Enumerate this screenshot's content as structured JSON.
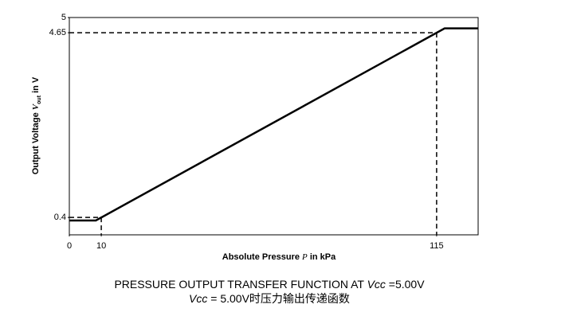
{
  "chart_data": {
    "type": "line",
    "ylabel": [
      "Output Voltage ",
      "V",
      "out",
      " in V"
    ],
    "xlabel": [
      "Absolute Pressure ",
      "P",
      " in kPa"
    ],
    "caption": [
      [
        "PRESSURE OUTPUT TRANSFER FUNCTION AT ",
        "Vcc",
        " =5.00V"
      ],
      [
        "Vcc",
        " = 5.00V时压力输出传递函数"
      ]
    ],
    "x": [
      0,
      8.3,
      117.5,
      128
    ],
    "values": [
      0.33,
      0.33,
      4.75,
      4.75
    ],
    "color": "#000000",
    "guides": [
      {
        "x": 10,
        "y": 0.4
      },
      {
        "x": 115,
        "y": 4.65
      }
    ],
    "xlim": [
      0,
      128
    ],
    "ylim": [
      0,
      5
    ],
    "xticks": [
      0,
      10,
      115
    ],
    "yticks": [
      0.4,
      4.65,
      5
    ],
    "grid": false
  }
}
